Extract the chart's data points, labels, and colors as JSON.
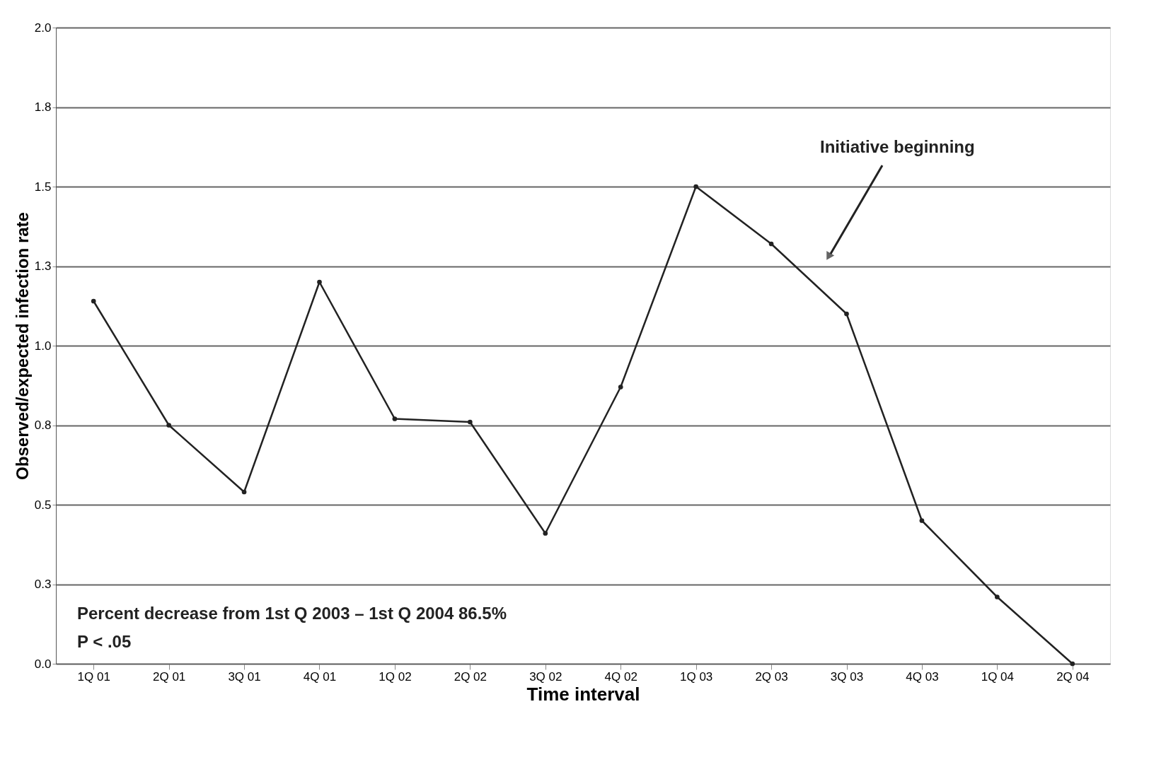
{
  "chart_data": {
    "type": "line",
    "xlabel": "Time interval",
    "ylabel": "Observed/expected infection rate",
    "categories": [
      "1Q 01",
      "2Q 01",
      "3Q 01",
      "4Q 01",
      "1Q 02",
      "2Q 02",
      "3Q 02",
      "4Q 02",
      "1Q 03",
      "2Q 03",
      "3Q 03",
      "4Q 03",
      "1Q 04",
      "2Q 04"
    ],
    "series": [
      {
        "color": "#222222",
        "values": [
          1.14,
          0.75,
          0.54,
          1.2,
          0.77,
          0.76,
          0.41,
          0.87,
          1.5,
          1.32,
          1.1,
          0.45,
          0.21,
          0.0
        ]
      }
    ],
    "ylim": [
      0,
      2
    ],
    "yticks": [
      {
        "value": 0,
        "label": "0.0"
      },
      {
        "value": 0.25,
        "label": "0.3"
      },
      0.5,
      {
        "value": 0.75,
        "label": "0.8"
      },
      {
        "value": 1,
        "label": "1.0"
      },
      {
        "value": 1.25,
        "label": "1.3"
      },
      1.5,
      {
        "value": 1.75,
        "label": "1.8"
      },
      {
        "value": 2,
        "label": "2.0"
      }
    ],
    "grid": "y",
    "marker": "circle",
    "line_style": "solid",
    "annotations": [
      "Initiative beginning",
      "Percent decrease from 1st Q 2003 – 1st Q 2004 86.5%",
      "P < .05"
    ]
  }
}
